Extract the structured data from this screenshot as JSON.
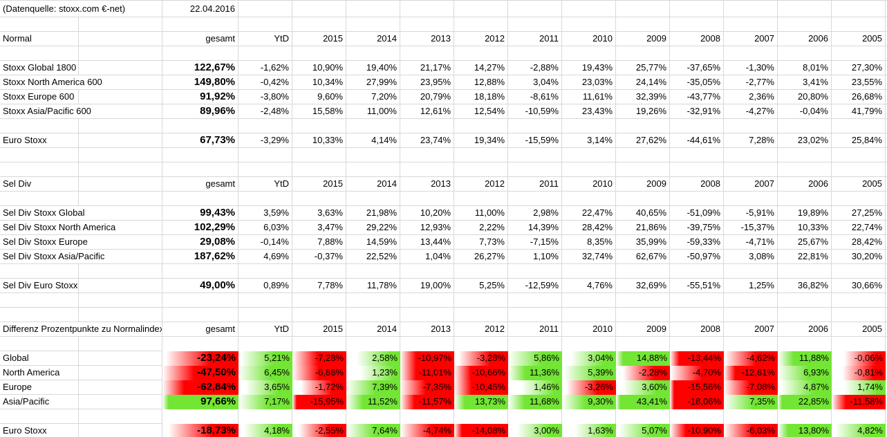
{
  "sheet": {
    "source_note": "(Datenquelle: stoxx.com €-net)",
    "date": "22.04.2016",
    "year_columns": [
      "gesamt",
      "YtD",
      "2015",
      "2014",
      "2013",
      "2012",
      "2011",
      "2010",
      "2009",
      "2008",
      "2007",
      "2006",
      "2005"
    ],
    "colors": {
      "positive": "#73e534",
      "negative": "#ff0000",
      "gridline": "#d8d8d8"
    },
    "blocks": [
      {
        "title": "Normal",
        "heatmap": false,
        "rows": [
          {
            "label": "Stoxx Global 1800",
            "values": [
              "122,67%",
              "-1,62%",
              "10,90%",
              "19,40%",
              "21,17%",
              "14,27%",
              "-2,88%",
              "19,43%",
              "25,77%",
              "-37,65%",
              "-1,30%",
              "8,01%",
              "27,30%"
            ]
          },
          {
            "label": "Stoxx North America 600",
            "values": [
              "149,80%",
              "-0,42%",
              "10,34%",
              "27,99%",
              "23,95%",
              "12,88%",
              "3,04%",
              "23,03%",
              "24,14%",
              "-35,05%",
              "-2,77%",
              "3,41%",
              "23,55%"
            ]
          },
          {
            "label": "Stoxx Europe 600",
            "values": [
              "91,92%",
              "-3,80%",
              "9,60%",
              "7,20%",
              "20,79%",
              "18,18%",
              "-8,61%",
              "11,61%",
              "32,39%",
              "-43,77%",
              "2,36%",
              "20,80%",
              "26,68%"
            ]
          },
          {
            "label": "Stoxx Asia/Pacific 600",
            "values": [
              "89,96%",
              "-2,48%",
              "15,58%",
              "11,00%",
              "12,61%",
              "12,54%",
              "-10,59%",
              "23,43%",
              "19,26%",
              "-32,91%",
              "-4,27%",
              "-0,04%",
              "41,79%"
            ]
          },
          {
            "label": "Euro Stoxx",
            "values": [
              "67,73%",
              "-3,29%",
              "10,33%",
              "4,14%",
              "23,74%",
              "19,34%",
              "-15,59%",
              "3,14%",
              "27,62%",
              "-44,61%",
              "7,28%",
              "23,02%",
              "25,84%"
            ]
          }
        ]
      },
      {
        "title": "Sel Div",
        "heatmap": false,
        "rows": [
          {
            "label": "Sel Div Stoxx Global",
            "values": [
              "99,43%",
              "3,59%",
              "3,63%",
              "21,98%",
              "10,20%",
              "11,00%",
              "2,98%",
              "22,47%",
              "40,65%",
              "-51,09%",
              "-5,91%",
              "19,89%",
              "27,25%"
            ]
          },
          {
            "label": "Sel Div Stoxx North America",
            "values": [
              "102,29%",
              "6,03%",
              "3,47%",
              "29,22%",
              "12,93%",
              "2,22%",
              "14,39%",
              "28,42%",
              "21,86%",
              "-39,75%",
              "-15,37%",
              "10,33%",
              "22,74%"
            ]
          },
          {
            "label": "Sel Div Stoxx Europe",
            "values": [
              "29,08%",
              "-0,14%",
              "7,88%",
              "14,59%",
              "13,44%",
              "7,73%",
              "-7,15%",
              "8,35%",
              "35,99%",
              "-59,33%",
              "-4,71%",
              "25,67%",
              "28,42%"
            ]
          },
          {
            "label": "Sel Div Stoxx Asia/Pacific",
            "values": [
              "187,62%",
              "4,69%",
              "-0,37%",
              "22,52%",
              "1,04%",
              "26,27%",
              "1,10%",
              "32,74%",
              "62,67%",
              "-50,97%",
              "3,08%",
              "22,81%",
              "30,20%"
            ]
          },
          {
            "label": "Sel Div Euro Stoxx",
            "values": [
              "49,00%",
              "0,89%",
              "7,78%",
              "11,78%",
              "19,00%",
              "5,25%",
              "-12,59%",
              "4,76%",
              "32,69%",
              "-55,51%",
              "1,25%",
              "36,82%",
              "30,66%"
            ]
          }
        ]
      },
      {
        "title": "Differenz Prozentpunkte zu Normalindex",
        "heatmap": true,
        "rows": [
          {
            "label": "Global",
            "values": [
              "-23,24%",
              "5,21%",
              "-7,28%",
              "2,58%",
              "-10,97%",
              "-3,28%",
              "5,86%",
              "3,04%",
              "14,88%",
              "-13,44%",
              "-4,62%",
              "11,88%",
              "-0,06%"
            ]
          },
          {
            "label": "North America",
            "values": [
              "-47,50%",
              "6,45%",
              "-6,86%",
              "1,23%",
              "-11,01%",
              "-10,66%",
              "11,36%",
              "5,39%",
              "-2,28%",
              "-4,70%",
              "-12,61%",
              "6,93%",
              "-0,81%"
            ]
          },
          {
            "label": "Europe",
            "values": [
              "-62,84%",
              "3,65%",
              "-1,72%",
              "7,39%",
              "-7,35%",
              "-10,45%",
              "1,46%",
              "-3,26%",
              "3,60%",
              "-15,56%",
              "-7,08%",
              "4,87%",
              "1,74%"
            ]
          },
          {
            "label": "Asia/Pacific",
            "values": [
              "97,66%",
              "7,17%",
              "-15,95%",
              "11,52%",
              "-11,57%",
              "13,73%",
              "11,68%",
              "9,30%",
              "43,41%",
              "-18,06%",
              "7,35%",
              "22,85%",
              "-11,58%"
            ]
          },
          {
            "label": "Euro Stoxx",
            "values": [
              "-18,73%",
              "4,18%",
              "-2,55%",
              "7,64%",
              "-4,74%",
              "-14,08%",
              "3,00%",
              "1,63%",
              "5,07%",
              "-10,90%",
              "-6,03%",
              "13,80%",
              "4,82%"
            ]
          }
        ]
      }
    ]
  }
}
